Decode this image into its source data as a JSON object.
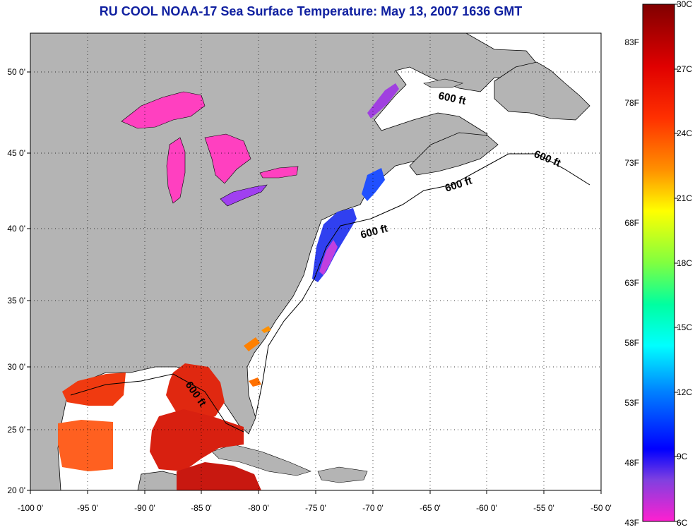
{
  "title": "RU COOL  NOAA-17  Sea Surface Temperature:  May 13, 2007 1636 GMT",
  "map": {
    "lon_ticks": [
      "-100 0'",
      "-95 0'",
      "-90 0'",
      "-85 0'",
      "-80 0'",
      "-75 0'",
      "-70 0'",
      "-65 0'",
      "-60 0'",
      "-55 0'",
      "-50 0'"
    ],
    "lat_ticks": [
      "50 0'",
      "45 0'",
      "40 0'",
      "35 0'",
      "30 0'",
      "25 0'",
      "20 0'"
    ],
    "contour_label": "600 ft",
    "colors": {
      "land": "#b4b4b4",
      "ocean": "#ffffff"
    }
  },
  "colorbar": {
    "celsius_labels": [
      "30C",
      "27C",
      "24C",
      "21C",
      "18C",
      "15C",
      "12C",
      "9C",
      "6C"
    ],
    "fahrenheit_labels": [
      "83F",
      "78F",
      "73F",
      "68F",
      "63F",
      "58F",
      "53F",
      "48F",
      "43F"
    ]
  }
}
